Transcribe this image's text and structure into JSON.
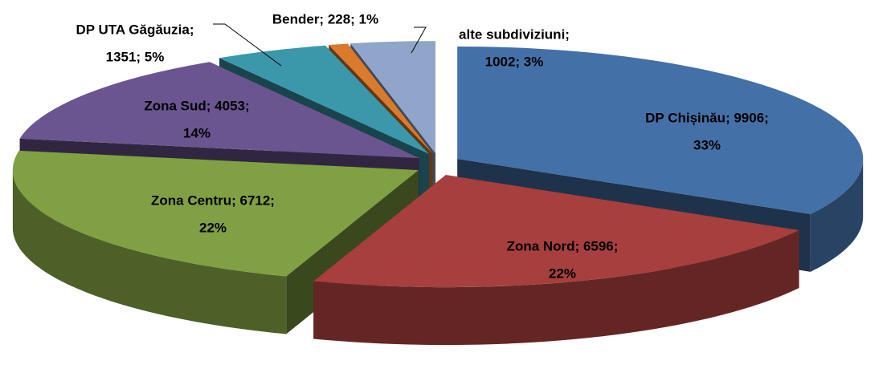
{
  "chart_data": {
    "type": "pie3d",
    "values": [
      9906,
      6596,
      6712,
      4053,
      1351,
      228,
      1002
    ],
    "value_labels": [
      [
        "DP Chișinău; 9906;",
        "33%"
      ],
      [
        "Zona Nord; 6596;",
        "22%"
      ],
      [
        "Zona Centru; 6712;",
        "22%"
      ],
      [
        "Zona Sud; 4053;",
        "14%"
      ],
      [
        "DP UTA Găgăuzia;",
        "1351; 5%"
      ],
      [
        "Bender; 228; 1%"
      ],
      [
        "alte subdiviziuni;",
        "1002; 3%"
      ]
    ],
    "colors": [
      "#4470a8",
      "#a63f3d",
      "#80a043",
      "#6b5590",
      "#3a98aa",
      "#da7a2c",
      "#8fa5ca"
    ]
  }
}
